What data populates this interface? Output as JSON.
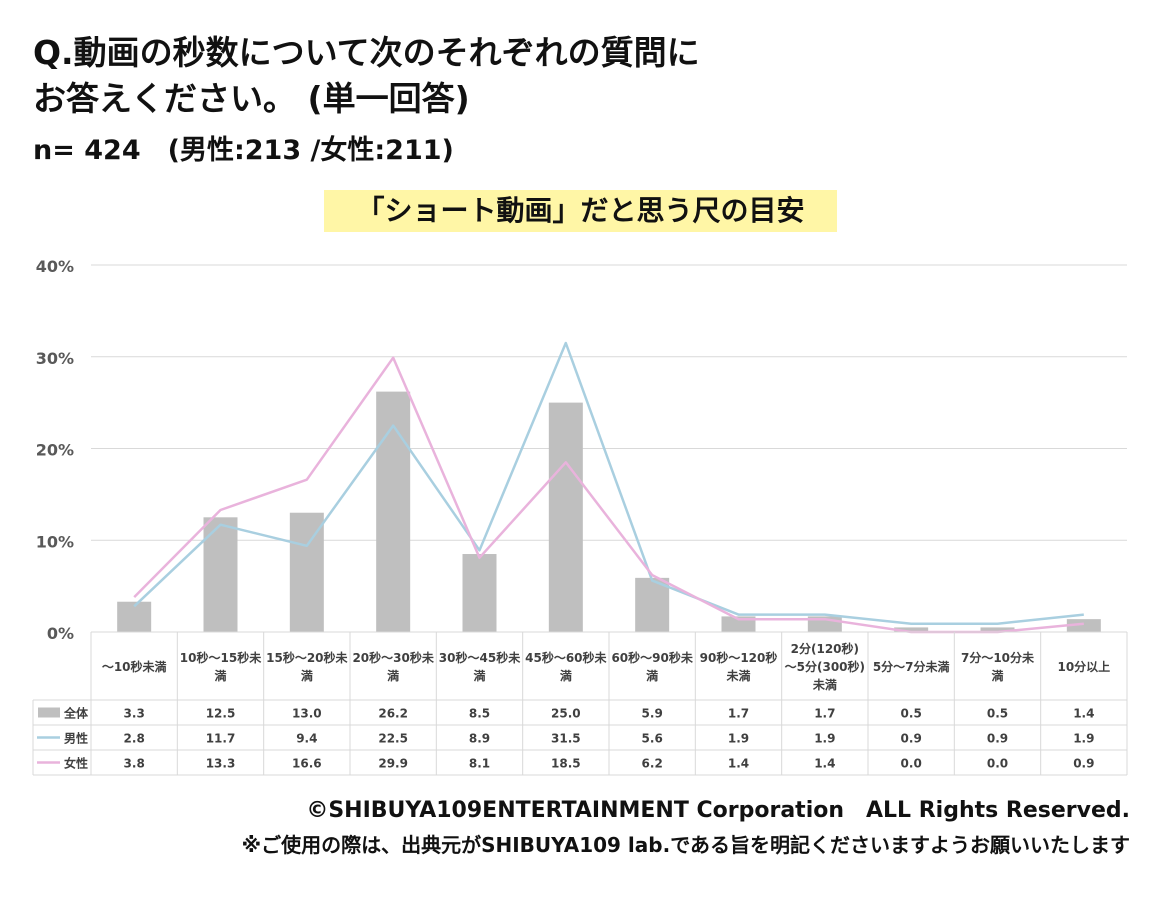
{
  "question": {
    "line1": "Q.動画の秒数について次のそれぞれの質問に",
    "line2": "お答えください。 (単一回答)"
  },
  "sample": "n= 424　(男性:213 /女性:211)",
  "chart_data": {
    "type": "bar",
    "title": "「ショート動画」だと思う尺の目安",
    "categories": [
      "～10秒未満",
      "10秒～15秒未満",
      "15秒～20秒未満",
      "20秒～30秒未満",
      "30秒～45秒未満",
      "45秒～60秒未満",
      "60秒～90秒未満",
      "90秒～120秒未満",
      "2分(120秒)～5分(300秒)未満",
      "5分～7分未満",
      "7分～10分未満",
      "10分以上"
    ],
    "category_lines": [
      [
        "～10秒未満"
      ],
      [
        "10秒～15秒未",
        "満"
      ],
      [
        "15秒～20秒未",
        "満"
      ],
      [
        "20秒～30秒未",
        "満"
      ],
      [
        "30秒～45秒未",
        "満"
      ],
      [
        "45秒～60秒未",
        "満"
      ],
      [
        "60秒～90秒未",
        "満"
      ],
      [
        "90秒～120秒",
        "未満"
      ],
      [
        "2分(120秒)",
        "～5分(300秒)",
        "未満"
      ],
      [
        "5分～7分未満"
      ],
      [
        "7分～10分未",
        "満"
      ],
      [
        "10分以上"
      ]
    ],
    "series": [
      {
        "name": "全体",
        "type": "bar",
        "color": "#bfbfbf",
        "values": [
          3.3,
          12.5,
          13.0,
          26.2,
          8.5,
          25.0,
          5.9,
          1.7,
          1.7,
          0.5,
          0.5,
          1.4
        ]
      },
      {
        "name": "男性",
        "type": "line",
        "color": "#a9cfe0",
        "values": [
          2.8,
          11.7,
          9.4,
          22.5,
          8.9,
          31.5,
          5.6,
          1.9,
          1.9,
          0.9,
          0.9,
          1.9
        ]
      },
      {
        "name": "女性",
        "type": "line",
        "color": "#e9b3dc",
        "values": [
          3.8,
          13.3,
          16.6,
          29.9,
          8.1,
          18.5,
          6.2,
          1.4,
          1.4,
          0.0,
          0.0,
          0.9
        ]
      }
    ],
    "ylim": [
      0,
      40
    ],
    "yticks": [
      "0%",
      "10%",
      "20%",
      "30%",
      "40%"
    ],
    "grid": true,
    "legend": "data-table"
  },
  "footer": {
    "copyright": "©SHIBUYA109ENTERTAINMENT Corporation　ALL Rights Reserved.",
    "notice": "※ご使用の際は、出典元がSHIBUYA109 lab.である旨を明記くださいますようお願いいたします"
  }
}
